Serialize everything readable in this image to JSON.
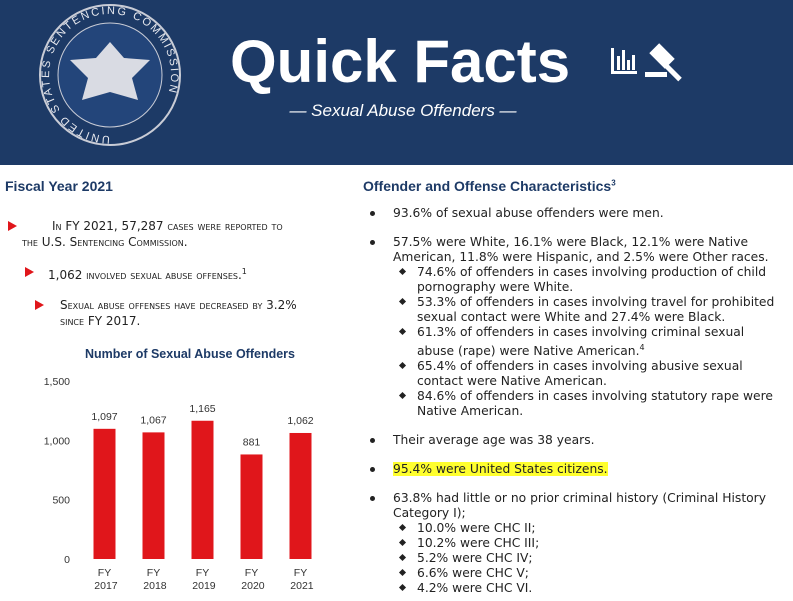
{
  "header": {
    "seal_text": "UNITED STATES SENTENCING COMMISSION",
    "title": "Quick Facts",
    "subtitle": "— Sexual Abuse Offenders —"
  },
  "left": {
    "heading": "Fiscal Year 2021",
    "items": [
      {
        "text": "In FY 2021, 57,287 cases were reported to the U.S. Sentencing Commission."
      },
      {
        "text": "1,062 involved sexual abuse offenses.",
        "sup": "1"
      },
      {
        "text": "Sexual abuse offenses have decreased by 3.2% since FY 2017."
      }
    ]
  },
  "right": {
    "heading": "Offender and Offense Characteristics",
    "heading_sup": "3",
    "items": [
      {
        "text": "93.6% of sexual abuse offenders were men."
      },
      {
        "text": "57.5% were White, 16.1% were Black, 12.1% were Native American, 11.8% were Hispanic, and 2.5% were Other races.",
        "subitems": [
          {
            "text": "74.6% of offenders in cases involving production of child pornography were White."
          },
          {
            "text": "53.3% of offenders in cases involving travel for prohibited sexual contact were White and 27.4% were Black."
          },
          {
            "text": "61.3% of offenders in cases involving criminal sexual abuse (rape) were Native American.",
            "sup": "4"
          },
          {
            "text": "65.4% of offenders in cases involving abusive sexual contact were Native American."
          },
          {
            "text": "84.6% of offenders in cases involving statutory rape were Native American."
          }
        ]
      },
      {
        "text": "Their average age was 38 years."
      },
      {
        "text": "95.4% were United States citizens.",
        "highlight": true
      },
      {
        "text": "63.8% had little or no prior criminal history (Criminal History Category I);",
        "subitems": [
          {
            "text": "10.0% were CHC II;"
          },
          {
            "text": "10.2% were CHC III;"
          },
          {
            "text": "5.2% were CHC IV;"
          },
          {
            "text": "6.6% were CHC V;"
          },
          {
            "text": "4.2% were CHC VI."
          }
        ]
      }
    ]
  },
  "chart_data": {
    "type": "bar",
    "title": "Number of Sexual Abuse Offenders",
    "categories": [
      "FY 2017",
      "FY 2018",
      "FY 2019",
      "FY 2020",
      "FY 2021"
    ],
    "values": [
      1097,
      1067,
      1165,
      881,
      1062
    ],
    "value_labels": [
      "1,097",
      "1,067",
      "1,165",
      "881",
      "1,062"
    ],
    "color": "#e0161b",
    "ylim": [
      0,
      1500
    ],
    "yticks": [
      0,
      500,
      {
        "value": 1000,
        "label": "1,000"
      },
      {
        "value": 1500,
        "label": "1,500"
      }
    ],
    "grid": false
  }
}
